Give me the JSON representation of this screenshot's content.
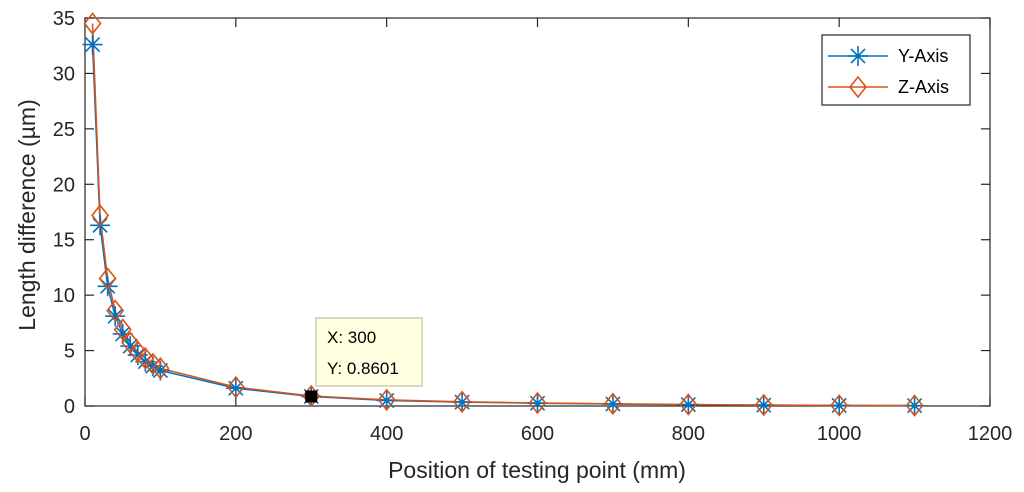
{
  "chart_data": {
    "type": "line",
    "xlabel": "Position of testing point (mm)",
    "ylabel": "Length difference (µm)",
    "xlim": [
      0,
      1200
    ],
    "ylim": [
      0,
      35
    ],
    "xticks": [
      0,
      200,
      400,
      600,
      800,
      1000,
      1200
    ],
    "yticks": [
      0,
      5,
      10,
      15,
      20,
      25,
      30,
      35
    ],
    "grid": false,
    "legend_position": "top-right",
    "series": [
      {
        "name": "Y-Axis",
        "color": "#0072BD",
        "marker": "asterisk",
        "x": [
          10,
          20,
          30,
          40,
          50,
          60,
          70,
          80,
          90,
          100,
          200,
          300,
          400,
          500,
          600,
          700,
          800,
          900,
          1000,
          1100
        ],
        "y": [
          32.6,
          16.3,
          10.8,
          8.1,
          6.5,
          5.4,
          4.6,
          4.0,
          3.6,
          3.2,
          1.6,
          0.8601,
          0.5,
          0.35,
          0.25,
          0.18,
          0.12,
          0.08,
          0.05,
          0.03
        ]
      },
      {
        "name": "Z-Axis",
        "color": "#D95319",
        "marker": "diamond",
        "x": [
          10,
          20,
          30,
          40,
          50,
          60,
          70,
          80,
          90,
          100,
          200,
          300,
          400,
          500,
          600,
          700,
          800,
          900,
          1000,
          1100
        ],
        "y": [
          34.5,
          17.2,
          11.5,
          8.6,
          6.9,
          5.7,
          4.9,
          4.3,
          3.8,
          3.4,
          1.7,
          0.9,
          0.55,
          0.38,
          0.27,
          0.2,
          0.14,
          0.09,
          0.06,
          0.04
        ]
      }
    ],
    "datatip": {
      "x_text": "X: 300",
      "y_text": "Y: 0.8601",
      "x": 300,
      "y": 0.8601
    }
  }
}
